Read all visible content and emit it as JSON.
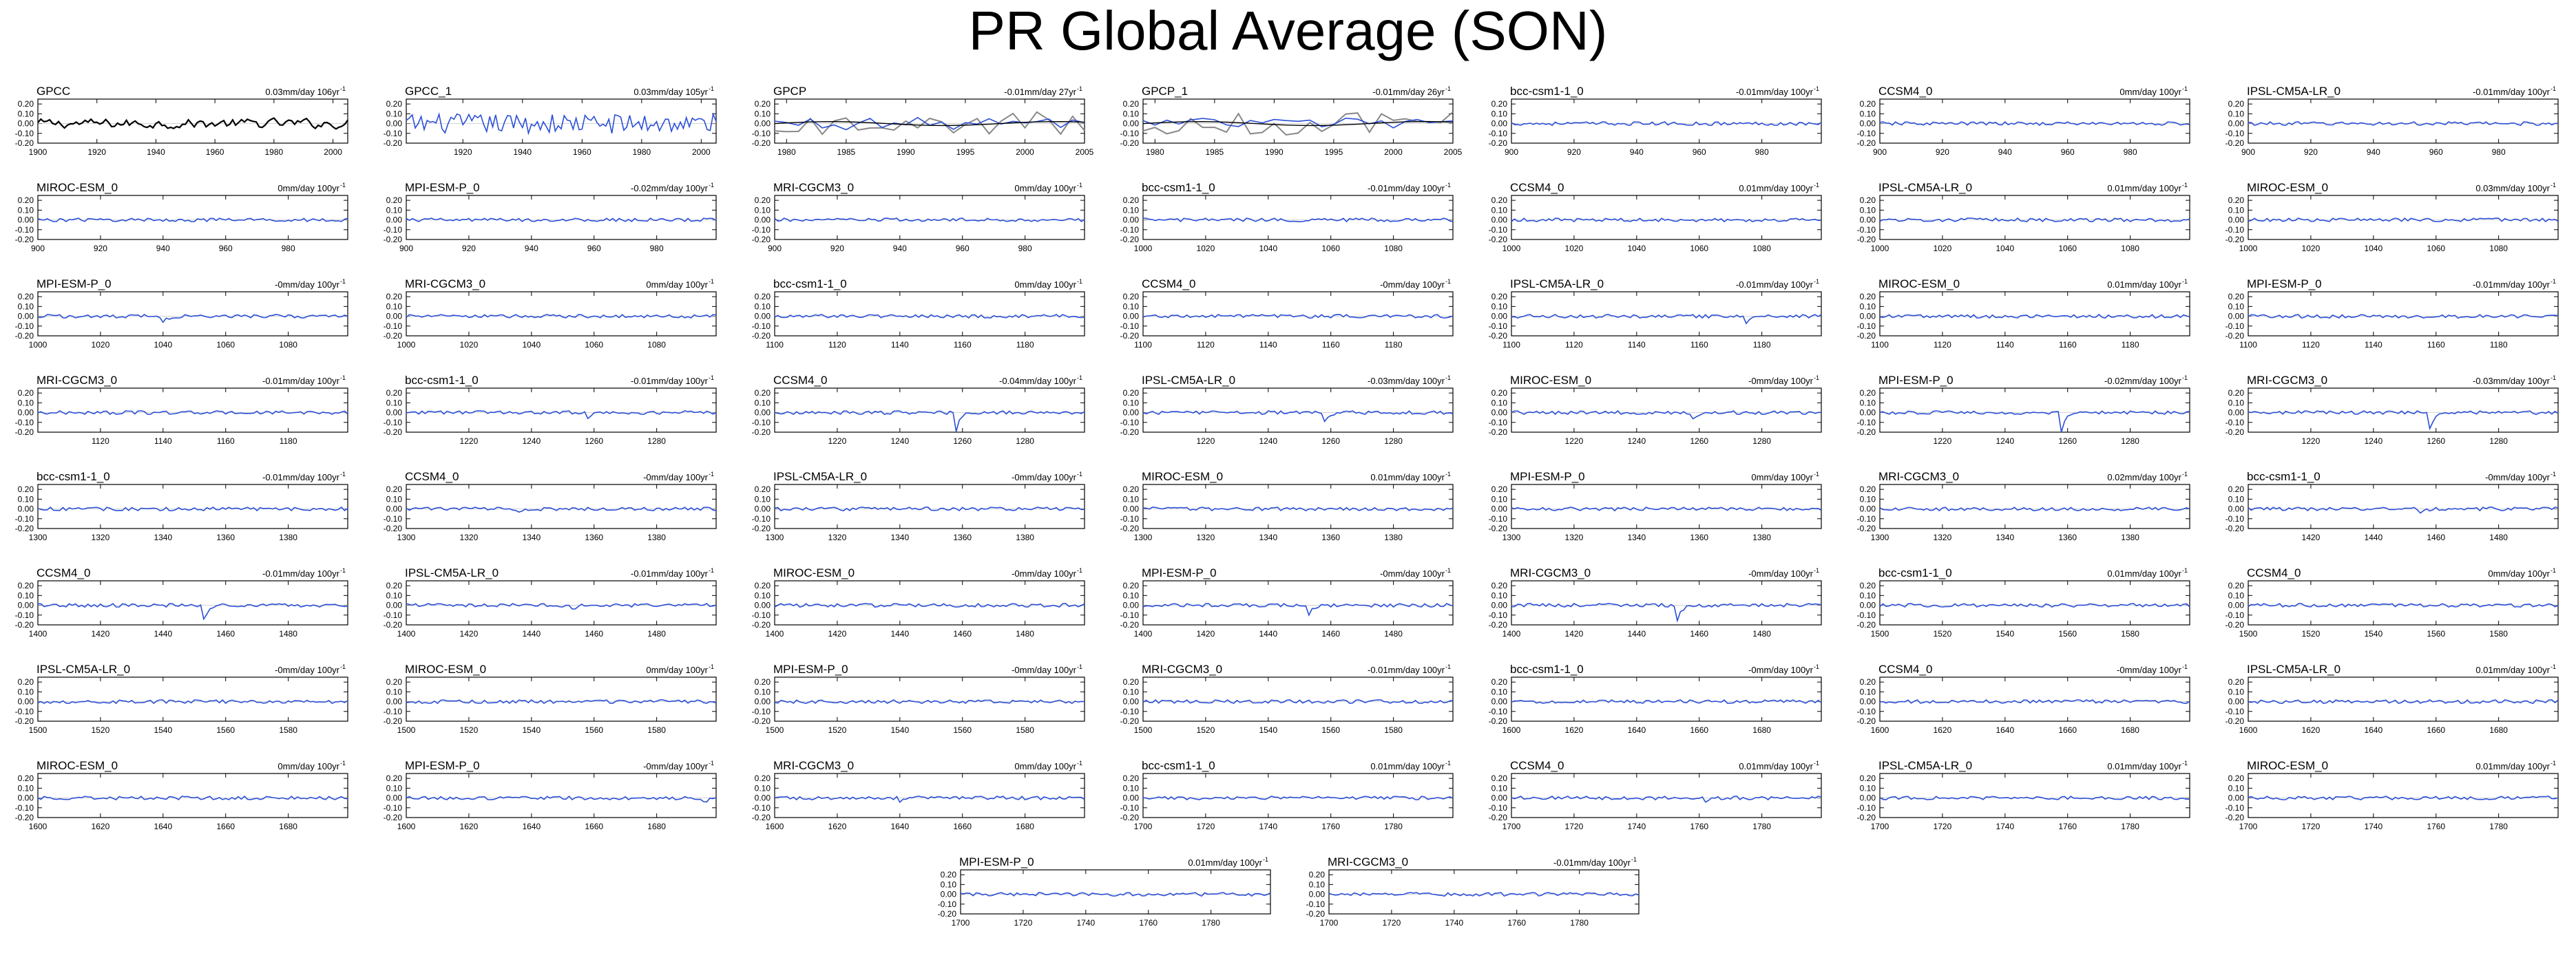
{
  "title": "PR Global Average (SON)",
  "colors": {
    "obs": "#000000",
    "model": "#2b4fd6",
    "reanalysis": "#888888"
  },
  "yticks": [
    "0.20",
    "0.10",
    "0.00",
    "-0.10",
    "-0.20"
  ],
  "ylim": [
    -0.2,
    0.25
  ],
  "chart_data": [
    {
      "type": "line",
      "title": "GPCC",
      "trend": "0.03mm/day 106yr",
      "xlim": [
        1900,
        2005
      ],
      "xticks": [
        "1900",
        "1920",
        "1940",
        "1960",
        "1980",
        "2000"
      ],
      "kind": "obs",
      "spike": null
    },
    {
      "type": "line",
      "title": "GPCC_1",
      "trend": "0.03mm/day 105yr",
      "xlim": [
        1901,
        2005
      ],
      "xticks": [
        "1920",
        "1940",
        "1960",
        "1980",
        "2000"
      ],
      "kind": "noisy",
      "spike": null
    },
    {
      "type": "line",
      "title": "GPCP",
      "trend": "-0.01mm/day 27yr",
      "xlim": [
        1979,
        2005
      ],
      "xticks": [
        "1980",
        "1985",
        "1990",
        "1995",
        "2000",
        "2005"
      ],
      "kind": "gpcp",
      "spike": null
    },
    {
      "type": "line",
      "title": "GPCP_1",
      "trend": "-0.01mm/day 26yr",
      "xlim": [
        1979,
        2005
      ],
      "xticks": [
        "1980",
        "1985",
        "1990",
        "1995",
        "2000",
        "2005"
      ],
      "kind": "gpcp",
      "spike": null
    },
    {
      "type": "line",
      "title": "bcc-csm1-1_0",
      "trend": "-0.01mm/day 100yr",
      "xlim": [
        900,
        999
      ],
      "xticks": [
        "900",
        "920",
        "940",
        "960",
        "980"
      ],
      "kind": "model",
      "spike": null
    },
    {
      "type": "line",
      "title": "CCSM4_0",
      "trend": "0mm/day 100yr",
      "xlim": [
        900,
        999
      ],
      "xticks": [
        "900",
        "920",
        "940",
        "960",
        "980"
      ],
      "kind": "model",
      "spike": null
    },
    {
      "type": "line",
      "title": "IPSL-CM5A-LR_0",
      "trend": "-0.01mm/day 100yr",
      "xlim": [
        900,
        999
      ],
      "xticks": [
        "900",
        "920",
        "940",
        "960",
        "980"
      ],
      "kind": "model",
      "spike": null
    },
    {
      "type": "line",
      "title": "MIROC-ESM_0",
      "trend": "0mm/day 100yr",
      "xlim": [
        900,
        999
      ],
      "xticks": [
        "900",
        "920",
        "940",
        "960",
        "980"
      ],
      "kind": "model",
      "spike": null
    },
    {
      "type": "line",
      "title": "MPI-ESM-P_0",
      "trend": "-0.02mm/day 100yr",
      "xlim": [
        900,
        999
      ],
      "xticks": [
        "900",
        "920",
        "940",
        "960",
        "980"
      ],
      "kind": "model",
      "spike": null
    },
    {
      "type": "line",
      "title": "MRI-CGCM3_0",
      "trend": "0mm/day 100yr",
      "xlim": [
        900,
        999
      ],
      "xticks": [
        "900",
        "920",
        "940",
        "960",
        "980"
      ],
      "kind": "model",
      "spike": null
    },
    {
      "type": "line",
      "title": "bcc-csm1-1_0",
      "trend": "-0.01mm/day 100yr",
      "xlim": [
        1000,
        1099
      ],
      "xticks": [
        "1000",
        "1020",
        "1040",
        "1060",
        "1080"
      ],
      "kind": "model",
      "spike": null
    },
    {
      "type": "line",
      "title": "CCSM4_0",
      "trend": "0.01mm/day 100yr",
      "xlim": [
        1000,
        1099
      ],
      "xticks": [
        "1000",
        "1020",
        "1040",
        "1060",
        "1080"
      ],
      "kind": "model",
      "spike": null
    },
    {
      "type": "line",
      "title": "IPSL-CM5A-LR_0",
      "trend": "0.01mm/day 100yr",
      "xlim": [
        1000,
        1099
      ],
      "xticks": [
        "1000",
        "1020",
        "1040",
        "1060",
        "1080"
      ],
      "kind": "model",
      "spike": null
    },
    {
      "type": "line",
      "title": "MIROC-ESM_0",
      "trend": "0.03mm/day 100yr",
      "xlim": [
        1000,
        1099
      ],
      "xticks": [
        "1000",
        "1020",
        "1040",
        "1060",
        "1080"
      ],
      "kind": "model",
      "spike": null
    },
    {
      "type": "line",
      "title": "MPI-ESM-P_0",
      "trend": "-0mm/day 100yr",
      "xlim": [
        1000,
        1099
      ],
      "xticks": [
        "1000",
        "1020",
        "1040",
        "1060",
        "1080"
      ],
      "kind": "model",
      "spike": {
        "at": 1040,
        "depth": -0.06
      }
    },
    {
      "type": "line",
      "title": "MRI-CGCM3_0",
      "trend": "0mm/day 100yr",
      "xlim": [
        1000,
        1099
      ],
      "xticks": [
        "1000",
        "1020",
        "1040",
        "1060",
        "1080"
      ],
      "kind": "model",
      "spike": null
    },
    {
      "type": "line",
      "title": "bcc-csm1-1_0",
      "trend": "0mm/day 100yr",
      "xlim": [
        1100,
        1199
      ],
      "xticks": [
        "1100",
        "1120",
        "1140",
        "1160",
        "1180"
      ],
      "kind": "model",
      "spike": null
    },
    {
      "type": "line",
      "title": "CCSM4_0",
      "trend": "-0mm/day 100yr",
      "xlim": [
        1100,
        1199
      ],
      "xticks": [
        "1100",
        "1120",
        "1140",
        "1160",
        "1180"
      ],
      "kind": "model",
      "spike": null
    },
    {
      "type": "line",
      "title": "IPSL-CM5A-LR_0",
      "trend": "-0.01mm/day 100yr",
      "xlim": [
        1100,
        1199
      ],
      "xticks": [
        "1100",
        "1120",
        "1140",
        "1160",
        "1180"
      ],
      "kind": "model",
      "spike": {
        "at": 1175,
        "depth": -0.07
      }
    },
    {
      "type": "line",
      "title": "MIROC-ESM_0",
      "trend": "0.01mm/day 100yr",
      "xlim": [
        1100,
        1199
      ],
      "xticks": [
        "1100",
        "1120",
        "1140",
        "1160",
        "1180"
      ],
      "kind": "model",
      "spike": null
    },
    {
      "type": "line",
      "title": "MPI-ESM-P_0",
      "trend": "-0.01mm/day 100yr",
      "xlim": [
        1100,
        1199
      ],
      "xticks": [
        "1100",
        "1120",
        "1140",
        "1160",
        "1180"
      ],
      "kind": "model",
      "spike": null
    },
    {
      "type": "line",
      "title": "MRI-CGCM3_0",
      "trend": "-0.01mm/day 100yr",
      "xlim": [
        1100,
        1199
      ],
      "xticks": [
        "1120",
        "1140",
        "1160",
        "1180"
      ],
      "kind": "model",
      "spike": null
    },
    {
      "type": "line",
      "title": "bcc-csm1-1_0",
      "trend": "-0.01mm/day 100yr",
      "xlim": [
        1200,
        1299
      ],
      "xticks": [
        "1220",
        "1240",
        "1260",
        "1280"
      ],
      "kind": "model",
      "spike": {
        "at": 1258,
        "depth": -0.06
      }
    },
    {
      "type": "line",
      "title": "CCSM4_0",
      "trend": "-0.04mm/day 100yr",
      "xlim": [
        1200,
        1299
      ],
      "xticks": [
        "1220",
        "1240",
        "1260",
        "1280"
      ],
      "kind": "model",
      "spike": {
        "at": 1258,
        "depth": -0.18
      }
    },
    {
      "type": "line",
      "title": "IPSL-CM5A-LR_0",
      "trend": "-0.03mm/day 100yr",
      "xlim": [
        1200,
        1299
      ],
      "xticks": [
        "1220",
        "1240",
        "1260",
        "1280"
      ],
      "kind": "model",
      "spike": {
        "at": 1258,
        "depth": -0.1
      }
    },
    {
      "type": "line",
      "title": "MIROC-ESM_0",
      "trend": "-0mm/day 100yr",
      "xlim": [
        1200,
        1299
      ],
      "xticks": [
        "1220",
        "1240",
        "1260",
        "1280"
      ],
      "kind": "model",
      "spike": {
        "at": 1258,
        "depth": -0.06
      }
    },
    {
      "type": "line",
      "title": "MPI-ESM-P_0",
      "trend": "-0.02mm/day 100yr",
      "xlim": [
        1200,
        1299
      ],
      "xticks": [
        "1220",
        "1240",
        "1260",
        "1280"
      ],
      "kind": "model",
      "spike": {
        "at": 1258,
        "depth": -0.19
      }
    },
    {
      "type": "line",
      "title": "MRI-CGCM3_0",
      "trend": "-0.03mm/day 100yr",
      "xlim": [
        1200,
        1299
      ],
      "xticks": [
        "1220",
        "1240",
        "1260",
        "1280"
      ],
      "kind": "model",
      "spike": {
        "at": 1258,
        "depth": -0.17
      }
    },
    {
      "type": "line",
      "title": "bcc-csm1-1_0",
      "trend": "-0.01mm/day 100yr",
      "xlim": [
        1300,
        1399
      ],
      "xticks": [
        "1300",
        "1320",
        "1340",
        "1360",
        "1380"
      ],
      "kind": "model",
      "spike": null
    },
    {
      "type": "line",
      "title": "CCSM4_0",
      "trend": "-0mm/day 100yr",
      "xlim": [
        1300,
        1399
      ],
      "xticks": [
        "1300",
        "1320",
        "1340",
        "1360",
        "1380"
      ],
      "kind": "model",
      "spike": {
        "at": 1336,
        "depth": -0.04
      }
    },
    {
      "type": "line",
      "title": "IPSL-CM5A-LR_0",
      "trend": "-0mm/day 100yr",
      "xlim": [
        1300,
        1399
      ],
      "xticks": [
        "1300",
        "1320",
        "1340",
        "1360",
        "1380"
      ],
      "kind": "model",
      "spike": null
    },
    {
      "type": "line",
      "title": "MIROC-ESM_0",
      "trend": "0.01mm/day 100yr",
      "xlim": [
        1300,
        1399
      ],
      "xticks": [
        "1300",
        "1320",
        "1340",
        "1360",
        "1380"
      ],
      "kind": "model",
      "spike": null
    },
    {
      "type": "line",
      "title": "MPI-ESM-P_0",
      "trend": "0mm/day 100yr",
      "xlim": [
        1300,
        1399
      ],
      "xticks": [
        "1300",
        "1320",
        "1340",
        "1360",
        "1380"
      ],
      "kind": "model",
      "spike": null
    },
    {
      "type": "line",
      "title": "MRI-CGCM3_0",
      "trend": "0.02mm/day 100yr",
      "xlim": [
        1300,
        1399
      ],
      "xticks": [
        "1300",
        "1320",
        "1340",
        "1360",
        "1380"
      ],
      "kind": "model",
      "spike": null
    },
    {
      "type": "line",
      "title": "bcc-csm1-1_0",
      "trend": "-0mm/day 100yr",
      "xlim": [
        1400,
        1499
      ],
      "xticks": [
        "1420",
        "1440",
        "1460",
        "1480"
      ],
      "kind": "model",
      "spike": {
        "at": 1455,
        "depth": -0.05
      }
    },
    {
      "type": "line",
      "title": "CCSM4_0",
      "trend": "-0.01mm/day 100yr",
      "xlim": [
        1400,
        1499
      ],
      "xticks": [
        "1400",
        "1420",
        "1440",
        "1460",
        "1480"
      ],
      "kind": "model",
      "spike": {
        "at": 1453,
        "depth": -0.15
      }
    },
    {
      "type": "line",
      "title": "IPSL-CM5A-LR_0",
      "trend": "-0.01mm/day 100yr",
      "xlim": [
        1400,
        1499
      ],
      "xticks": [
        "1400",
        "1420",
        "1440",
        "1460",
        "1480"
      ],
      "kind": "model",
      "spike": {
        "at": 1453,
        "depth": -0.04
      }
    },
    {
      "type": "line",
      "title": "MIROC-ESM_0",
      "trend": "-0mm/day 100yr",
      "xlim": [
        1400,
        1499
      ],
      "xticks": [
        "1400",
        "1420",
        "1440",
        "1460",
        "1480"
      ],
      "kind": "model",
      "spike": null
    },
    {
      "type": "line",
      "title": "MPI-ESM-P_0",
      "trend": "-0mm/day 100yr",
      "xlim": [
        1400,
        1499
      ],
      "xticks": [
        "1400",
        "1420",
        "1440",
        "1460",
        "1480"
      ],
      "kind": "model",
      "spike": {
        "at": 1453,
        "depth": -0.09
      }
    },
    {
      "type": "line",
      "title": "MRI-CGCM3_0",
      "trend": "-0mm/day 100yr",
      "xlim": [
        1400,
        1499
      ],
      "xticks": [
        "1400",
        "1420",
        "1440",
        "1460",
        "1480"
      ],
      "kind": "model",
      "spike": {
        "at": 1453,
        "depth": -0.14
      }
    },
    {
      "type": "line",
      "title": "bcc-csm1-1_0",
      "trend": "0.01mm/day 100yr",
      "xlim": [
        1500,
        1599
      ],
      "xticks": [
        "1500",
        "1520",
        "1540",
        "1560",
        "1580"
      ],
      "kind": "model",
      "spike": null
    },
    {
      "type": "line",
      "title": "CCSM4_0",
      "trend": "0mm/day 100yr",
      "xlim": [
        1500,
        1599
      ],
      "xticks": [
        "1500",
        "1520",
        "1540",
        "1560",
        "1580"
      ],
      "kind": "model",
      "spike": null
    },
    {
      "type": "line",
      "title": "IPSL-CM5A-LR_0",
      "trend": "-0mm/day 100yr",
      "xlim": [
        1500,
        1599
      ],
      "xticks": [
        "1500",
        "1520",
        "1540",
        "1560",
        "1580"
      ],
      "kind": "model",
      "spike": null
    },
    {
      "type": "line",
      "title": "MIROC-ESM_0",
      "trend": "0mm/day 100yr",
      "xlim": [
        1500,
        1599
      ],
      "xticks": [
        "1500",
        "1520",
        "1540",
        "1560",
        "1580"
      ],
      "kind": "model",
      "spike": null
    },
    {
      "type": "line",
      "title": "MPI-ESM-P_0",
      "trend": "-0mm/day 100yr",
      "xlim": [
        1500,
        1599
      ],
      "xticks": [
        "1500",
        "1520",
        "1540",
        "1560",
        "1580"
      ],
      "kind": "model",
      "spike": null
    },
    {
      "type": "line",
      "title": "MRI-CGCM3_0",
      "trend": "-0.01mm/day 100yr",
      "xlim": [
        1500,
        1599
      ],
      "xticks": [
        "1500",
        "1520",
        "1540",
        "1560",
        "1580"
      ],
      "kind": "model",
      "spike": null
    },
    {
      "type": "line",
      "title": "bcc-csm1-1_0",
      "trend": "-0mm/day 100yr",
      "xlim": [
        1600,
        1699
      ],
      "xticks": [
        "1600",
        "1620",
        "1640",
        "1660",
        "1680"
      ],
      "kind": "model",
      "spike": null
    },
    {
      "type": "line",
      "title": "CCSM4_0",
      "trend": "-0mm/day 100yr",
      "xlim": [
        1600,
        1699
      ],
      "xticks": [
        "1600",
        "1620",
        "1640",
        "1660",
        "1680"
      ],
      "kind": "model",
      "spike": null
    },
    {
      "type": "line",
      "title": "IPSL-CM5A-LR_0",
      "trend": "0.01mm/day 100yr",
      "xlim": [
        1600,
        1699
      ],
      "xticks": [
        "1600",
        "1620",
        "1640",
        "1660",
        "1680"
      ],
      "kind": "model",
      "spike": null
    },
    {
      "type": "line",
      "title": "MIROC-ESM_0",
      "trend": "0mm/day 100yr",
      "xlim": [
        1600,
        1699
      ],
      "xticks": [
        "1600",
        "1620",
        "1640",
        "1660",
        "1680"
      ],
      "kind": "model",
      "spike": null
    },
    {
      "type": "line",
      "title": "MPI-ESM-P_0",
      "trend": "-0mm/day 100yr",
      "xlim": [
        1600,
        1699
      ],
      "xticks": [
        "1600",
        "1620",
        "1640",
        "1660",
        "1680"
      ],
      "kind": "model",
      "spike": {
        "at": 1695,
        "depth": -0.05
      }
    },
    {
      "type": "line",
      "title": "MRI-CGCM3_0",
      "trend": "0mm/day 100yr",
      "xlim": [
        1600,
        1699
      ],
      "xticks": [
        "1600",
        "1620",
        "1640",
        "1660",
        "1680"
      ],
      "kind": "model",
      "spike": {
        "at": 1640,
        "depth": -0.04
      }
    },
    {
      "type": "line",
      "title": "bcc-csm1-1_0",
      "trend": "0.01mm/day 100yr",
      "xlim": [
        1700,
        1799
      ],
      "xticks": [
        "1700",
        "1720",
        "1740",
        "1760",
        "1780"
      ],
      "kind": "model",
      "spike": null
    },
    {
      "type": "line",
      "title": "CCSM4_0",
      "trend": "0.01mm/day 100yr",
      "xlim": [
        1700,
        1799
      ],
      "xticks": [
        "1700",
        "1720",
        "1740",
        "1760",
        "1780"
      ],
      "kind": "model",
      "spike": {
        "at": 1762,
        "depth": -0.04
      }
    },
    {
      "type": "line",
      "title": "IPSL-CM5A-LR_0",
      "trend": "0.01mm/day 100yr",
      "xlim": [
        1700,
        1799
      ],
      "xticks": [
        "1700",
        "1720",
        "1740",
        "1760",
        "1780"
      ],
      "kind": "model",
      "spike": null
    },
    {
      "type": "line",
      "title": "MIROC-ESM_0",
      "trend": "0.01mm/day 100yr",
      "xlim": [
        1700,
        1799
      ],
      "xticks": [
        "1700",
        "1720",
        "1740",
        "1760",
        "1780"
      ],
      "kind": "model",
      "spike": null
    },
    {
      "type": "line",
      "title": "MPI-ESM-P_0",
      "trend": "0.01mm/day 100yr",
      "xlim": [
        1700,
        1799
      ],
      "xticks": [
        "1700",
        "1720",
        "1740",
        "1760",
        "1780"
      ],
      "kind": "model",
      "spike": null
    },
    {
      "type": "line",
      "title": "MRI-CGCM3_0",
      "trend": "-0.01mm/day 100yr",
      "xlim": [
        1700,
        1799
      ],
      "xticks": [
        "1700",
        "1720",
        "1740",
        "1760",
        "1780"
      ],
      "kind": "model",
      "spike": null
    }
  ]
}
